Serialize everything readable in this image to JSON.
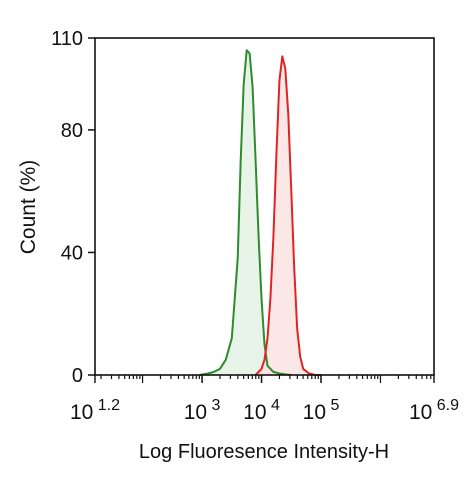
{
  "chart_data": {
    "type": "area",
    "title": "",
    "xlabel": "Log Fluoresence Intensity-H",
    "ylabel": "Count  (%)",
    "x_scale": "log10",
    "xlim": [
      1.2,
      6.9
    ],
    "ylim": [
      0,
      110
    ],
    "y_ticks": [
      0,
      40,
      80,
      110
    ],
    "x_ticks": [
      {
        "value": 1.2,
        "base": "10",
        "exp": "1.2"
      },
      {
        "value": 3,
        "base": "10",
        "exp": "3"
      },
      {
        "value": 4,
        "base": "10",
        "exp": "4"
      },
      {
        "value": 5,
        "base": "10",
        "exp": "5"
      },
      {
        "value": 6.9,
        "base": "10",
        "exp": "6.9"
      }
    ],
    "grid": false,
    "legend": "none",
    "series": [
      {
        "color": "#2e8b2e",
        "fill": "#e4f2e4",
        "x_log10": [
          2.96,
          3.1,
          3.2,
          3.3,
          3.4,
          3.5,
          3.6,
          3.65,
          3.7,
          3.75,
          3.8,
          3.85,
          3.9,
          3.95,
          4.0,
          4.05,
          4.1,
          4.2,
          4.3,
          4.4,
          4.5
        ],
        "y": [
          0,
          0.5,
          1,
          2,
          5,
          12,
          38,
          70,
          95,
          106,
          105,
          94,
          70,
          45,
          25,
          10,
          3,
          1,
          0.5,
          0.2,
          0
        ]
      },
      {
        "color": "#e02424",
        "fill": "#fbe3e3",
        "x_log10": [
          3.9,
          4.0,
          4.05,
          4.1,
          4.15,
          4.2,
          4.25,
          4.3,
          4.35,
          4.4,
          4.45,
          4.5,
          4.55,
          4.6,
          4.65,
          4.7,
          4.8,
          4.9,
          5.0
        ],
        "y": [
          0,
          2,
          5,
          12,
          25,
          45,
          72,
          96,
          104,
          100,
          85,
          60,
          35,
          15,
          6,
          2,
          0.5,
          0,
          0
        ]
      }
    ]
  }
}
